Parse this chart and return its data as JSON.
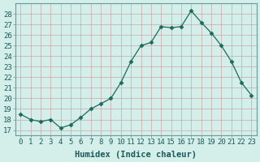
{
  "x": [
    0,
    1,
    2,
    3,
    4,
    5,
    6,
    7,
    8,
    9,
    10,
    11,
    12,
    13,
    14,
    15,
    16,
    17,
    18,
    19,
    20,
    21,
    22,
    23
  ],
  "y": [
    18.5,
    18.0,
    17.8,
    18.0,
    17.2,
    17.5,
    18.2,
    19.0,
    19.5,
    20.0,
    21.5,
    23.5,
    25.0,
    25.3,
    26.8,
    26.7,
    26.8,
    28.3,
    27.2,
    26.2,
    25.0,
    23.5,
    21.5,
    20.3
  ],
  "line_color": "#1a6b5a",
  "marker": "D",
  "marker_size": 2.5,
  "plot_bg_color": "#d4eeea",
  "fig_bg_color": "#d4eeea",
  "grid_color": "#c8a8a8",
  "xlabel": "Humidex (Indice chaleur)",
  "ylabel_ticks": [
    17,
    18,
    19,
    20,
    21,
    22,
    23,
    24,
    25,
    26,
    27,
    28
  ],
  "ylim": [
    16.5,
    29
  ],
  "xlim": [
    -0.5,
    23.5
  ],
  "xlabel_fontsize": 7.5,
  "tick_fontsize": 6.5,
  "spine_color": "#6a9a9a",
  "tick_color": "#1a5a5a",
  "xlabel_color": "#1a5a5a"
}
